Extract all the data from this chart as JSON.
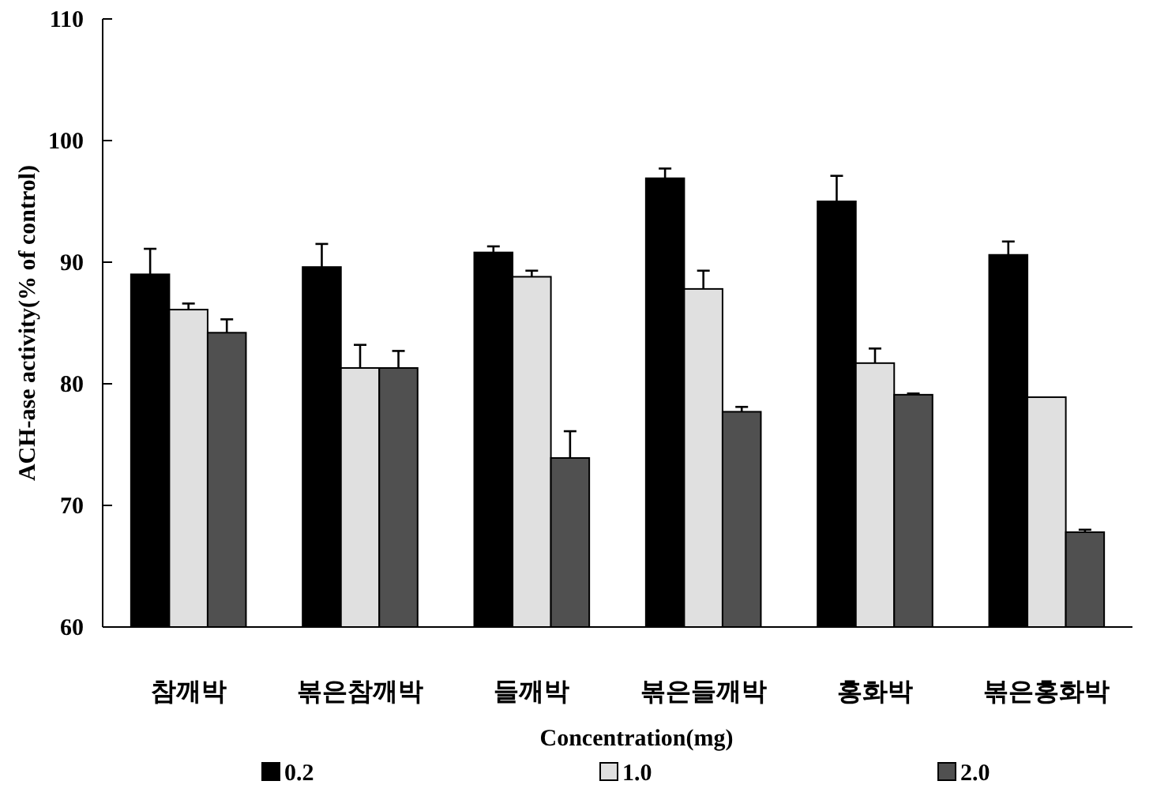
{
  "chart_data": {
    "type": "bar",
    "xlabel": "Concentration(mg)",
    "ylabel": "ACH-ase activity(% of control)",
    "categories": [
      "참깨박",
      "볶은참깨박",
      "들깨박",
      "볶은들깨박",
      "홍화박",
      "볶은홍화박"
    ],
    "series": [
      {
        "name": "0.2",
        "color": "#000000",
        "values": [
          89.0,
          89.6,
          90.8,
          96.9,
          95.0,
          90.6
        ],
        "errors": [
          [
            89.0,
            91.1
          ],
          [
            89.6,
            91.5
          ],
          [
            90.8,
            91.3
          ],
          [
            96.9,
            97.7
          ],
          [
            95.0,
            97.1
          ],
          [
            90.6,
            91.7
          ]
        ]
      },
      {
        "name": "1.0",
        "color": "#e0e0e0",
        "values": [
          86.1,
          81.3,
          88.8,
          87.8,
          81.7,
          78.9
        ],
        "errors": [
          [
            86.1,
            86.6
          ],
          [
            81.3,
            83.2
          ],
          [
            88.8,
            89.3
          ],
          [
            87.8,
            89.3
          ],
          [
            81.7,
            82.9
          ],
          null
        ]
      },
      {
        "name": "2.0",
        "color": "#505050",
        "values": [
          84.2,
          81.3,
          73.9,
          77.7,
          79.1,
          67.8
        ],
        "errors": [
          [
            84.2,
            85.3
          ],
          [
            81.3,
            82.7
          ],
          [
            73.9,
            76.1
          ],
          [
            77.7,
            78.1
          ],
          [
            79.1,
            79.2
          ],
          [
            67.8,
            68.0
          ]
        ]
      }
    ],
    "ylim": [
      60,
      110
    ],
    "yticks": [
      60,
      70,
      80,
      90,
      100,
      110
    ],
    "grid": false,
    "legend": "bottom"
  }
}
